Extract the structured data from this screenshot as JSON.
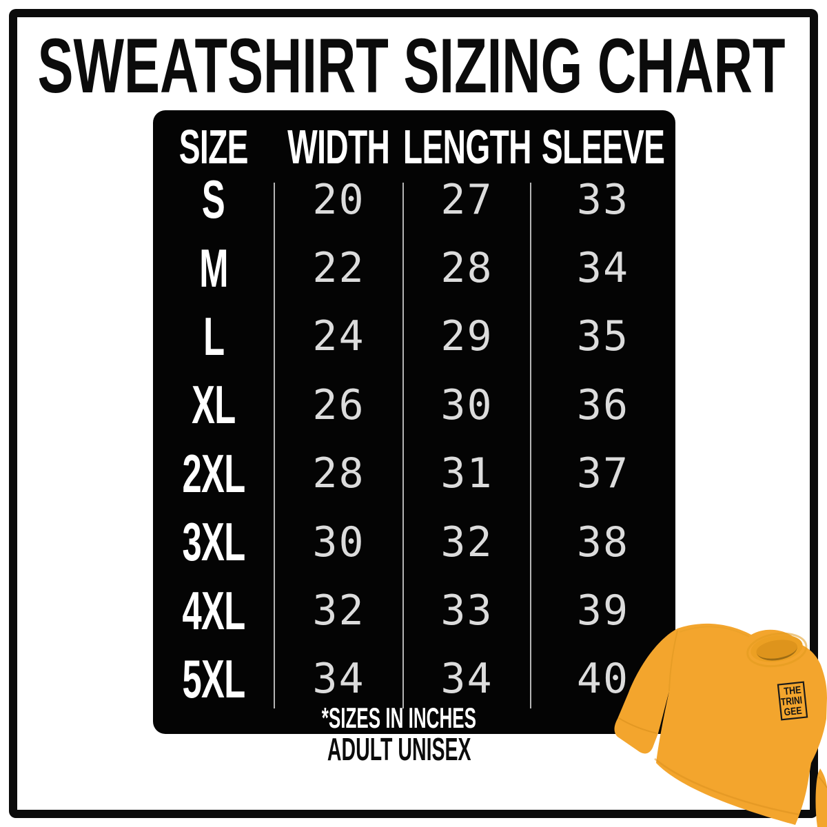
{
  "title": "SWEATSHIRT SIZING CHART",
  "chart_data": {
    "type": "table",
    "title": "SWEATSHIRT SIZING CHART",
    "columns": [
      "SIZE",
      "WIDTH",
      "LENGTH",
      "SLEEVE"
    ],
    "rows": [
      {
        "size": "S",
        "width": "20",
        "length": "27",
        "sleeve": "33"
      },
      {
        "size": "M",
        "width": "22",
        "length": "28",
        "sleeve": "34"
      },
      {
        "size": "L",
        "width": "24",
        "length": "29",
        "sleeve": "35"
      },
      {
        "size": "XL",
        "width": "26",
        "length": "30",
        "sleeve": "36"
      },
      {
        "size": "2XL",
        "width": "28",
        "length": "31",
        "sleeve": "37"
      },
      {
        "size": "3XL",
        "width": "30",
        "length": "32",
        "sleeve": "38"
      },
      {
        "size": "4XL",
        "width": "32",
        "length": "33",
        "sleeve": "39"
      },
      {
        "size": "5XL",
        "width": "34",
        "length": "34",
        "sleeve": "40"
      }
    ],
    "units_note": "*SIZES IN INCHES",
    "audience_note": "ADULT UNISEX"
  },
  "product_image": {
    "logo_lines": [
      "THE",
      "TRINI",
      "GEE"
    ]
  },
  "colors": {
    "background": "#ffffff",
    "frame": "#0b0b0b",
    "panel": "#040404",
    "header_text": "#ffffff",
    "value_text": "#dcdcdc",
    "divider": "#c9c9c9",
    "sweatshirt_gold": "#F3A52D",
    "sweatshirt_shade": "#D98F1D",
    "collar_inner": "#8a5f10"
  }
}
